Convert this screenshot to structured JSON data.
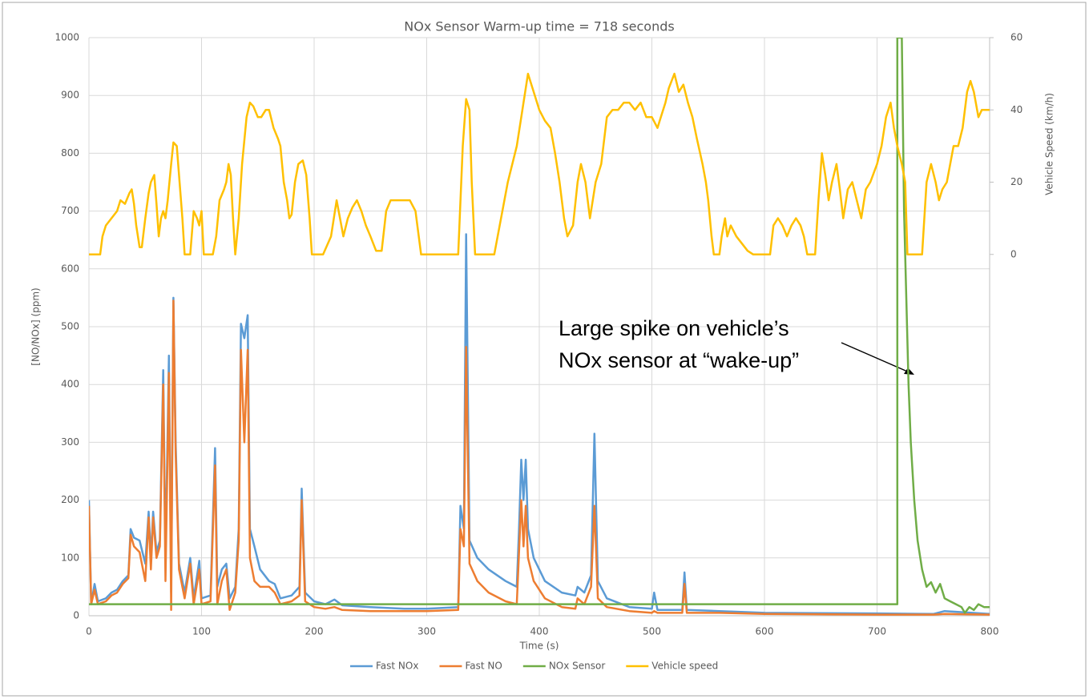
{
  "chart_data": {
    "type": "line",
    "title": "NOx Sensor Warm-up time = 718 seconds",
    "xlabel": "Time (s)",
    "ylabel": "[NO/NOx] (ppm)",
    "y2label": "Vehicle Speed (km/h)",
    "annotation": [
      "Large spike on vehicle’s",
      "NOx sensor at “wake-up”"
    ],
    "xlim": [
      0,
      800
    ],
    "xticks": [
      0,
      100,
      200,
      300,
      400,
      500,
      600,
      700,
      800
    ],
    "ylim": [
      0,
      1000
    ],
    "yticks": [
      0,
      100,
      200,
      300,
      400,
      500,
      600,
      700,
      800,
      900,
      1000
    ],
    "y2lim": [
      -100,
      60
    ],
    "y2ticks": [
      0,
      20,
      40,
      60
    ],
    "grid": true,
    "legend": "bottom",
    "series": [
      {
        "name": "Fast NOx",
        "color": "#5b9bd5",
        "x": [
          0,
          2,
          5,
          8,
          15,
          20,
          25,
          30,
          35,
          37,
          40,
          45,
          50,
          53,
          55,
          57,
          60,
          63,
          66,
          68,
          71,
          73,
          75,
          77,
          80,
          85,
          90,
          93,
          98,
          100,
          108,
          112,
          114,
          118,
          122,
          125,
          130,
          133,
          135,
          138,
          141,
          143,
          147,
          152,
          160,
          165,
          170,
          180,
          187,
          189,
          192,
          200,
          210,
          218,
          225,
          250,
          280,
          300,
          328,
          330,
          333,
          335,
          338,
          345,
          355,
          370,
          380,
          382,
          384,
          386,
          388,
          390,
          395,
          405,
          420,
          432,
          434,
          440,
          446,
          449,
          452,
          460,
          480,
          500,
          502,
          505,
          527,
          529,
          531,
          560,
          600,
          700,
          750,
          760,
          800
        ],
        "values": [
          200,
          20,
          55,
          25,
          30,
          40,
          45,
          60,
          70,
          150,
          135,
          130,
          90,
          180,
          100,
          180,
          110,
          130,
          425,
          100,
          450,
          40,
          550,
          300,
          90,
          40,
          100,
          30,
          95,
          30,
          35,
          290,
          50,
          80,
          90,
          30,
          50,
          150,
          505,
          480,
          520,
          150,
          120,
          80,
          60,
          55,
          30,
          35,
          50,
          220,
          40,
          25,
          20,
          28,
          18,
          15,
          12,
          12,
          15,
          190,
          150,
          660,
          130,
          100,
          80,
          60,
          50,
          150,
          270,
          200,
          270,
          150,
          100,
          60,
          40,
          35,
          50,
          40,
          70,
          315,
          60,
          30,
          15,
          12,
          40,
          10,
          10,
          75,
          10,
          8,
          5,
          4,
          3,
          8,
          3
        ]
      },
      {
        "name": "Fast NO",
        "color": "#ed7d31",
        "x": [
          0,
          2,
          5,
          8,
          15,
          20,
          25,
          30,
          35,
          37,
          40,
          45,
          50,
          53,
          55,
          57,
          60,
          63,
          66,
          68,
          71,
          73,
          75,
          77,
          80,
          85,
          90,
          93,
          98,
          100,
          108,
          112,
          114,
          118,
          122,
          125,
          130,
          133,
          135,
          138,
          141,
          143,
          147,
          152,
          160,
          165,
          170,
          180,
          187,
          189,
          192,
          200,
          210,
          218,
          225,
          250,
          280,
          300,
          328,
          330,
          333,
          335,
          338,
          345,
          355,
          370,
          380,
          382,
          384,
          386,
          388,
          390,
          395,
          405,
          420,
          432,
          434,
          440,
          446,
          449,
          452,
          460,
          480,
          500,
          502,
          505,
          527,
          529,
          531,
          560,
          600,
          700,
          750,
          760,
          800
        ],
        "values": [
          190,
          20,
          45,
          20,
          25,
          35,
          40,
          55,
          65,
          140,
          120,
          110,
          60,
          170,
          80,
          170,
          100,
          120,
          400,
          60,
          420,
          10,
          545,
          280,
          80,
          30,
          90,
          20,
          80,
          20,
          25,
          260,
          20,
          60,
          80,
          10,
          40,
          130,
          460,
          300,
          460,
          100,
          60,
          50,
          50,
          40,
          20,
          25,
          35,
          200,
          25,
          15,
          12,
          15,
          10,
          8,
          8,
          8,
          10,
          150,
          120,
          465,
          90,
          60,
          40,
          25,
          20,
          110,
          200,
          120,
          190,
          100,
          60,
          30,
          15,
          12,
          30,
          20,
          50,
          190,
          30,
          15,
          8,
          5,
          8,
          5,
          5,
          55,
          5,
          5,
          3,
          2,
          2,
          3,
          2
        ]
      },
      {
        "name": "NOx Sensor",
        "color": "#70ad47",
        "x": [
          0,
          718,
          718,
          722,
          724,
          726,
          728,
          730,
          733,
          736,
          740,
          744,
          748,
          752,
          756,
          760,
          765,
          770,
          775,
          778,
          782,
          786,
          790,
          795,
          800
        ],
        "values": [
          20,
          20,
          1000,
          1000,
          700,
          550,
          400,
          300,
          200,
          130,
          80,
          50,
          58,
          40,
          55,
          30,
          25,
          20,
          15,
          5,
          15,
          10,
          20,
          15,
          15
        ]
      },
      {
        "name": "Vehicle speed",
        "color": "#ffc000",
        "axis": "y2",
        "x": [
          0,
          10,
          12,
          15,
          20,
          25,
          28,
          32,
          36,
          38,
          40,
          42,
          45,
          47,
          50,
          53,
          55,
          58,
          60,
          62,
          64,
          66,
          68,
          70,
          73,
          75,
          78,
          80,
          83,
          85,
          90,
          93,
          96,
          98,
          100,
          102,
          110,
          113,
          116,
          120,
          122,
          124,
          126,
          128,
          130,
          133,
          136,
          140,
          143,
          146,
          150,
          153,
          157,
          160,
          164,
          168,
          170,
          173,
          176,
          178,
          180,
          183,
          186,
          190,
          193,
          196,
          198,
          208,
          215,
          220,
          223,
          226,
          230,
          234,
          238,
          242,
          246,
          250,
          255,
          260,
          264,
          268,
          275,
          285,
          290,
          295,
          328,
          332,
          335,
          338,
          340,
          343,
          360,
          372,
          380,
          385,
          390,
          395,
          400,
          405,
          410,
          414,
          418,
          422,
          425,
          430,
          434,
          437,
          441,
          445,
          450,
          455,
          460,
          465,
          470,
          475,
          480,
          485,
          490,
          495,
          500,
          505,
          508,
          512,
          515,
          520,
          524,
          528,
          532,
          536,
          540,
          545,
          548,
          550,
          553,
          555,
          560,
          562,
          565,
          567,
          570,
          575,
          580,
          585,
          590,
          605,
          608,
          612,
          616,
          620,
          624,
          628,
          632,
          635,
          638,
          645,
          648,
          651,
          654,
          657,
          660,
          664,
          667,
          670,
          674,
          678,
          682,
          686,
          690,
          694,
          700,
          704,
          708,
          712,
          715,
          718,
          722,
          725,
          727,
          740,
          744,
          748,
          752,
          755,
          758,
          762,
          765,
          768,
          772,
          776,
          780,
          783,
          786,
          790,
          793,
          796,
          800
        ],
        "values": [
          0,
          0,
          5,
          8,
          10,
          12,
          15,
          14,
          17,
          18,
          14,
          8,
          2,
          2,
          10,
          17,
          20,
          22,
          14,
          5,
          10,
          12,
          10,
          15,
          25,
          31,
          30,
          22,
          10,
          0,
          0,
          12,
          10,
          8,
          12,
          0,
          0,
          5,
          15,
          18,
          20,
          25,
          22,
          10,
          0,
          10,
          25,
          38,
          42,
          41,
          38,
          38,
          40,
          40,
          35,
          32,
          30,
          20,
          15,
          10,
          11,
          20,
          25,
          26,
          22,
          10,
          0,
          0,
          5,
          15,
          10,
          5,
          10,
          13,
          15,
          12,
          8,
          5,
          1,
          1,
          12,
          15,
          15,
          15,
          12,
          0,
          0,
          30,
          43,
          40,
          20,
          0,
          0,
          20,
          30,
          40,
          50,
          45,
          40,
          37,
          35,
          28,
          20,
          10,
          5,
          8,
          20,
          25,
          20,
          10,
          20,
          25,
          38,
          40,
          40,
          42,
          42,
          40,
          42,
          38,
          38,
          35,
          38,
          42,
          46,
          50,
          45,
          47,
          42,
          38,
          32,
          25,
          20,
          15,
          5,
          0,
          0,
          5,
          10,
          5,
          8,
          5,
          3,
          1,
          0,
          0,
          8,
          10,
          8,
          5,
          8,
          10,
          8,
          5,
          0,
          0,
          15,
          28,
          22,
          15,
          20,
          25,
          18,
          10,
          18,
          20,
          15,
          10,
          18,
          20,
          25,
          30,
          38,
          42,
          35,
          30,
          25,
          20,
          0,
          0,
          20,
          25,
          20,
          15,
          18,
          20,
          25,
          30,
          30,
          35,
          45,
          48,
          45,
          38,
          40,
          40,
          40
        ]
      }
    ]
  }
}
